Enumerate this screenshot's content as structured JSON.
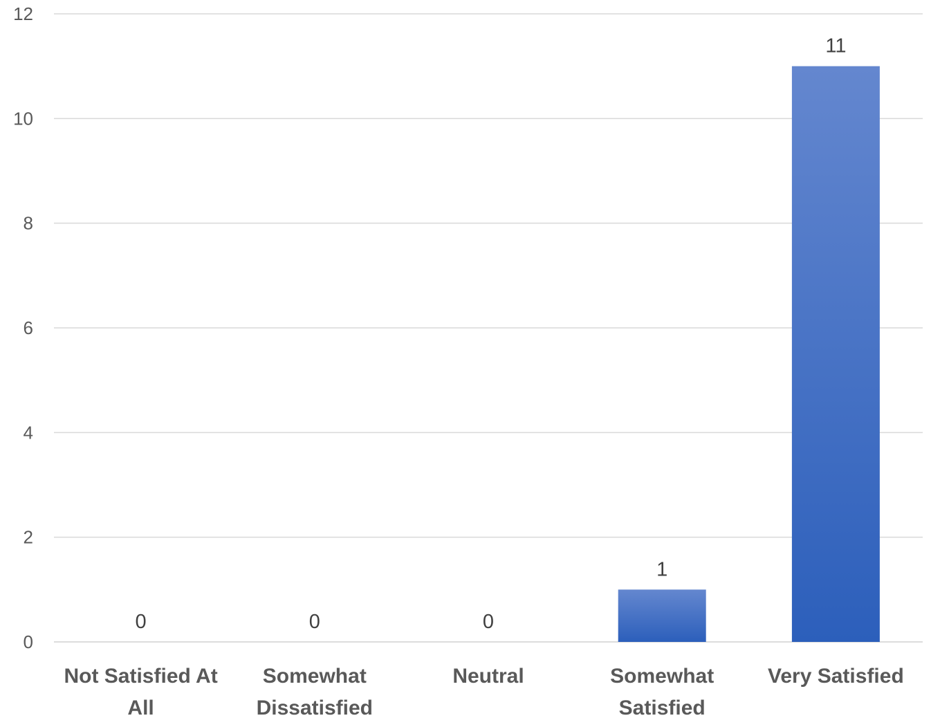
{
  "chart_data": {
    "type": "bar",
    "title": "",
    "xlabel": "",
    "ylabel": "",
    "categories": [
      [
        "Not Satisfied At",
        "All"
      ],
      [
        "Somewhat",
        "Dissatisfied"
      ],
      [
        "Neutral"
      ],
      [
        "Somewhat",
        "Satisfied"
      ],
      [
        "Very Satisfied"
      ]
    ],
    "values": [
      0,
      0,
      0,
      1,
      11
    ],
    "ylim": [
      0,
      12
    ],
    "yticks": [
      0,
      2,
      4,
      6,
      8,
      10,
      12
    ],
    "grid": true,
    "legend": "none",
    "data_labels": true,
    "colors": {
      "bar_top": "#6487cf",
      "bar_bottom": "#2c5fbb",
      "gridline": "#d9d9d9",
      "tick_text": "#595959",
      "label_text": "#404040"
    }
  }
}
